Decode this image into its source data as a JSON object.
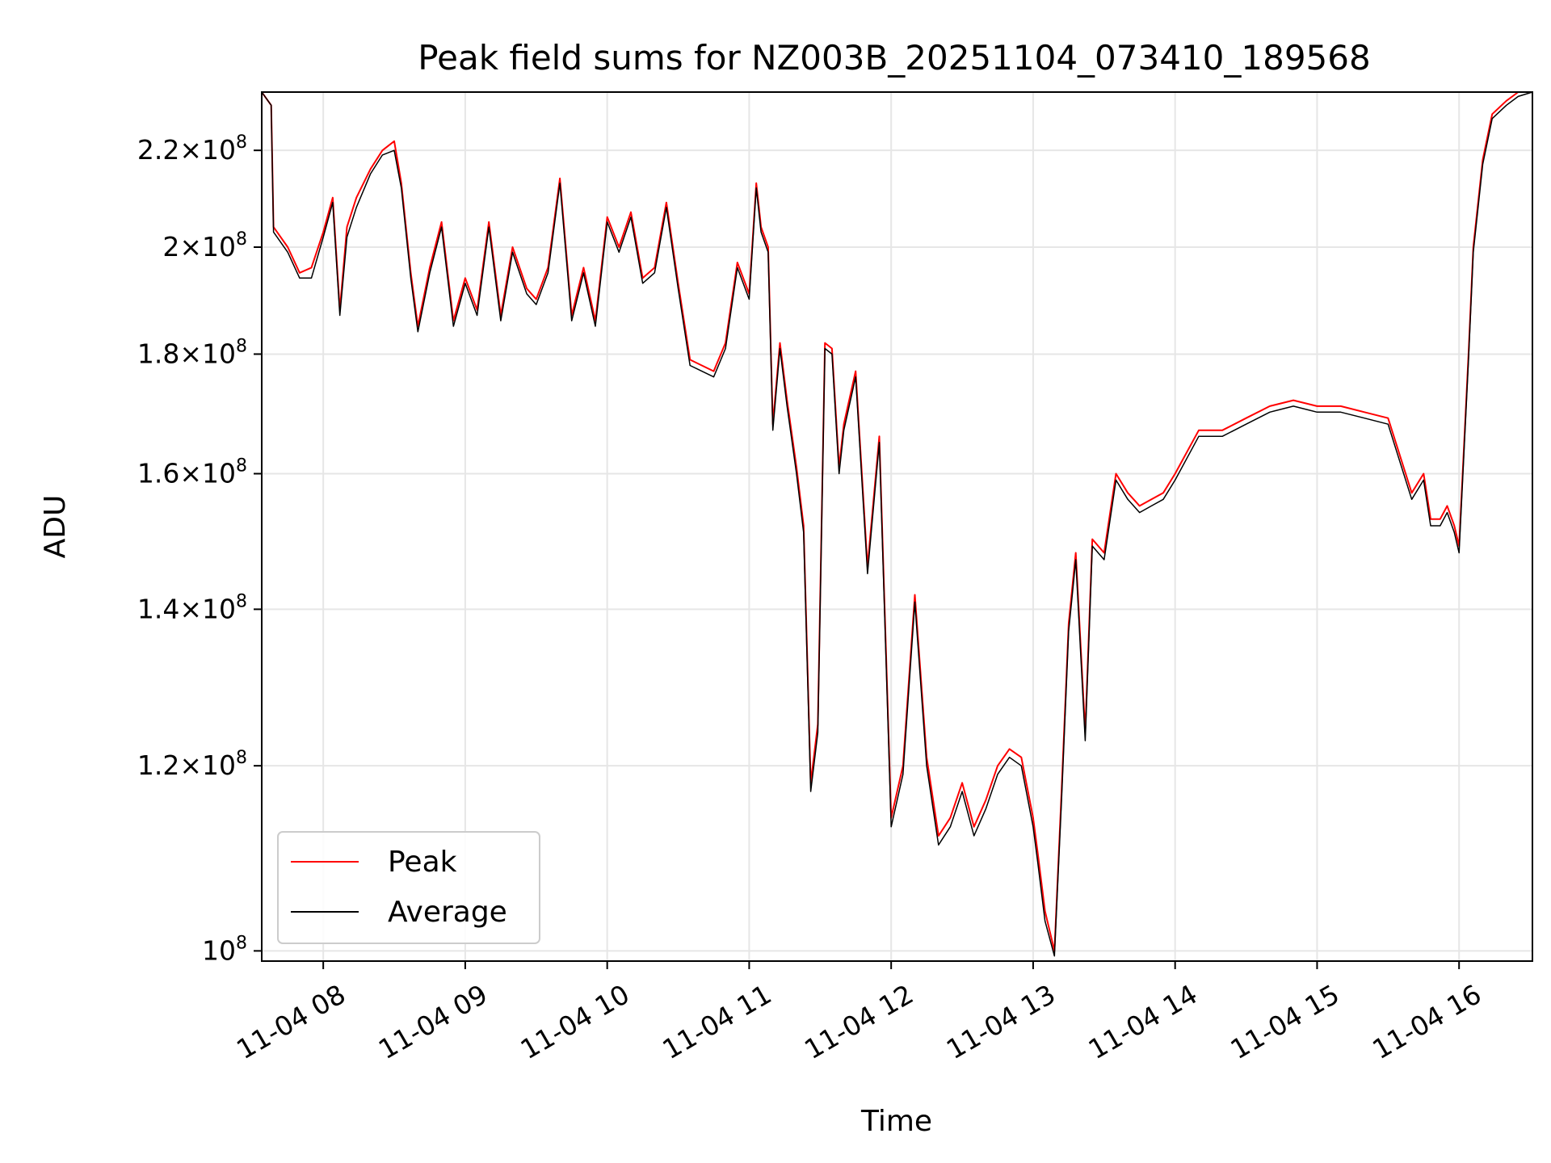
{
  "chart_data": {
    "type": "line",
    "title": "Peak field sums for NZ003B_20251104_073410_189568",
    "xlabel": "Time",
    "ylabel": "ADU",
    "yscale": "log",
    "xlim": [
      "11-04 07:34",
      "11-04 16:31"
    ],
    "ylim": [
      99000000,
      233000000
    ],
    "grid": true,
    "legend_position": "lower-left",
    "x_ticks": [
      "11-04 08",
      "11-04 09",
      "11-04 10",
      "11-04 11",
      "11-04 12",
      "11-04 13",
      "11-04 14",
      "11-04 15",
      "11-04 16"
    ],
    "y_ticks": [
      {
        "value": 100000000,
        "mantissa": "",
        "exp": "8"
      },
      {
        "value": 120000000,
        "mantissa": "1.2",
        "exp": "8"
      },
      {
        "value": 140000000,
        "mantissa": "1.4",
        "exp": "8"
      },
      {
        "value": 160000000,
        "mantissa": "1.6",
        "exp": "8"
      },
      {
        "value": 180000000,
        "mantissa": "1.8",
        "exp": "8"
      },
      {
        "value": 200000000,
        "mantissa": "2",
        "exp": "8"
      },
      {
        "value": 220000000,
        "mantissa": "2.2",
        "exp": "8"
      }
    ],
    "series": [
      {
        "name": "Peak",
        "color": "#ff0000",
        "x": [
          "11-04 07:34",
          "11-04 07:38",
          "11-04 07:39",
          "11-04 07:45",
          "11-04 07:50",
          "11-04 07:55",
          "11-04 08:00",
          "11-04 08:04",
          "11-04 08:07",
          "11-04 08:10",
          "11-04 08:14",
          "11-04 08:20",
          "11-04 08:25",
          "11-04 08:30",
          "11-04 08:33",
          "11-04 08:37",
          "11-04 08:40",
          "11-04 08:45",
          "11-04 08:50",
          "11-04 08:55",
          "11-04 09:00",
          "11-04 09:05",
          "11-04 09:10",
          "11-04 09:15",
          "11-04 09:20",
          "11-04 09:26",
          "11-04 09:30",
          "11-04 09:35",
          "11-04 09:40",
          "11-04 09:45",
          "11-04 09:50",
          "11-04 09:55",
          "11-04 10:00",
          "11-04 10:05",
          "11-04 10:10",
          "11-04 10:15",
          "11-04 10:20",
          "11-04 10:25",
          "11-04 10:30",
          "11-04 10:35",
          "11-04 10:40",
          "11-04 10:45",
          "11-04 10:50",
          "11-04 10:55",
          "11-04 11:00",
          "11-04 11:03",
          "11-04 11:05",
          "11-04 11:08",
          "11-04 11:10",
          "11-04 11:13",
          "11-04 11:16",
          "11-04 11:20",
          "11-04 11:23",
          "11-04 11:26",
          "11-04 11:29",
          "11-04 11:32",
          "11-04 11:35",
          "11-04 11:38",
          "11-04 11:40",
          "11-04 11:45",
          "11-04 11:50",
          "11-04 11:55",
          "11-04 12:00",
          "11-04 12:05",
          "11-04 12:10",
          "11-04 12:15",
          "11-04 12:20",
          "11-04 12:25",
          "11-04 12:30",
          "11-04 12:35",
          "11-04 12:40",
          "11-04 12:45",
          "11-04 12:50",
          "11-04 12:55",
          "11-04 13:00",
          "11-04 13:02",
          "11-04 13:05",
          "11-04 13:09",
          "11-04 13:12",
          "11-04 13:15",
          "11-04 13:18",
          "11-04 13:22",
          "11-04 13:25",
          "11-04 13:30",
          "11-04 13:35",
          "11-04 13:40",
          "11-04 13:45",
          "11-04 13:50",
          "11-04 13:55",
          "11-04 14:00",
          "11-04 14:10",
          "11-04 14:20",
          "11-04 14:30",
          "11-04 14:40",
          "11-04 14:50",
          "11-04 15:00",
          "11-04 15:10",
          "11-04 15:20",
          "11-04 15:30",
          "11-04 15:40",
          "11-04 15:45",
          "11-04 15:48",
          "11-04 15:52",
          "11-04 15:55",
          "11-04 15:58",
          "11-04 16:00",
          "11-04 16:04",
          "11-04 16:06",
          "11-04 16:10",
          "11-04 16:14",
          "11-04 16:20",
          "11-04 16:25",
          "11-04 16:31"
        ],
        "values": [
          233000000,
          230000000,
          204000000,
          200000000,
          195000000,
          196000000,
          203000000,
          210000000,
          188000000,
          204000000,
          210000000,
          216000000,
          220000000,
          222000000,
          213000000,
          195000000,
          185000000,
          196000000,
          205000000,
          186000000,
          194000000,
          188000000,
          205000000,
          187000000,
          200000000,
          192000000,
          190000000,
          196000000,
          214000000,
          187000000,
          196000000,
          186000000,
          206000000,
          200000000,
          207000000,
          194000000,
          196000000,
          209000000,
          193000000,
          179000000,
          178000000,
          177000000,
          182000000,
          197000000,
          191000000,
          213000000,
          204000000,
          200000000,
          168000000,
          182000000,
          172000000,
          161000000,
          152000000,
          118000000,
          125000000,
          182000000,
          181000000,
          161000000,
          168000000,
          177000000,
          146000000,
          166000000,
          114000000,
          120000000,
          142000000,
          121000000,
          112000000,
          114000000,
          118000000,
          113000000,
          116000000,
          120000000,
          122000000,
          121000000,
          114000000,
          110000000,
          104000000,
          100000000,
          117000000,
          138000000,
          148000000,
          124000000,
          150000000,
          148000000,
          160000000,
          157000000,
          155000000,
          156000000,
          157000000,
          160000000,
          167000000,
          167000000,
          169000000,
          171000000,
          172000000,
          171000000,
          171000000,
          170000000,
          169000000,
          157000000,
          160000000,
          153000000,
          153000000,
          155000000,
          152000000,
          149000000,
          180000000,
          200000000,
          218000000,
          228000000,
          231000000,
          233000000,
          233000000
        ]
      },
      {
        "name": "Average",
        "color": "#000000",
        "x": [
          "11-04 07:34",
          "11-04 07:38",
          "11-04 07:39",
          "11-04 07:45",
          "11-04 07:50",
          "11-04 07:55",
          "11-04 08:00",
          "11-04 08:04",
          "11-04 08:07",
          "11-04 08:10",
          "11-04 08:14",
          "11-04 08:20",
          "11-04 08:25",
          "11-04 08:30",
          "11-04 08:33",
          "11-04 08:37",
          "11-04 08:40",
          "11-04 08:45",
          "11-04 08:50",
          "11-04 08:55",
          "11-04 09:00",
          "11-04 09:05",
          "11-04 09:10",
          "11-04 09:15",
          "11-04 09:20",
          "11-04 09:26",
          "11-04 09:30",
          "11-04 09:35",
          "11-04 09:40",
          "11-04 09:45",
          "11-04 09:50",
          "11-04 09:55",
          "11-04 10:00",
          "11-04 10:05",
          "11-04 10:10",
          "11-04 10:15",
          "11-04 10:20",
          "11-04 10:25",
          "11-04 10:30",
          "11-04 10:35",
          "11-04 10:40",
          "11-04 10:45",
          "11-04 10:50",
          "11-04 10:55",
          "11-04 11:00",
          "11-04 11:03",
          "11-04 11:05",
          "11-04 11:08",
          "11-04 11:10",
          "11-04 11:13",
          "11-04 11:16",
          "11-04 11:20",
          "11-04 11:23",
          "11-04 11:26",
          "11-04 11:29",
          "11-04 11:32",
          "11-04 11:35",
          "11-04 11:38",
          "11-04 11:40",
          "11-04 11:45",
          "11-04 11:50",
          "11-04 11:55",
          "11-04 12:00",
          "11-04 12:05",
          "11-04 12:10",
          "11-04 12:15",
          "11-04 12:20",
          "11-04 12:25",
          "11-04 12:30",
          "11-04 12:35",
          "11-04 12:40",
          "11-04 12:45",
          "11-04 12:50",
          "11-04 12:55",
          "11-04 13:00",
          "11-04 13:02",
          "11-04 13:05",
          "11-04 13:09",
          "11-04 13:12",
          "11-04 13:15",
          "11-04 13:18",
          "11-04 13:22",
          "11-04 13:25",
          "11-04 13:30",
          "11-04 13:35",
          "11-04 13:40",
          "11-04 13:45",
          "11-04 13:50",
          "11-04 13:55",
          "11-04 14:00",
          "11-04 14:10",
          "11-04 14:20",
          "11-04 14:30",
          "11-04 14:40",
          "11-04 14:50",
          "11-04 15:00",
          "11-04 15:10",
          "11-04 15:20",
          "11-04 15:30",
          "11-04 15:40",
          "11-04 15:45",
          "11-04 15:48",
          "11-04 15:52",
          "11-04 15:55",
          "11-04 15:58",
          "11-04 16:00",
          "11-04 16:04",
          "11-04 16:06",
          "11-04 16:10",
          "11-04 16:14",
          "11-04 16:20",
          "11-04 16:25",
          "11-04 16:31"
        ],
        "values": [
          233000000,
          230000000,
          203000000,
          199000000,
          194000000,
          194000000,
          202000000,
          209000000,
          187000000,
          202000000,
          208000000,
          215000000,
          219000000,
          220000000,
          212000000,
          194000000,
          184000000,
          195000000,
          204000000,
          185000000,
          193000000,
          187000000,
          204000000,
          186000000,
          199000000,
          191000000,
          189000000,
          195000000,
          213000000,
          186000000,
          195000000,
          185000000,
          205000000,
          199000000,
          206000000,
          193000000,
          195000000,
          208000000,
          192000000,
          178000000,
          177000000,
          176000000,
          181000000,
          196000000,
          190000000,
          212000000,
          203000000,
          199000000,
          167000000,
          181000000,
          171000000,
          160000000,
          151000000,
          117000000,
          124000000,
          181000000,
          180000000,
          160000000,
          167000000,
          176000000,
          145000000,
          165000000,
          113000000,
          119000000,
          141000000,
          120000000,
          111000000,
          113000000,
          117000000,
          112000000,
          115000000,
          119000000,
          121000000,
          120000000,
          113000000,
          109000000,
          103000000,
          99500000,
          116000000,
          137000000,
          147000000,
          123000000,
          149000000,
          147000000,
          159000000,
          156000000,
          154000000,
          155000000,
          156000000,
          159000000,
          166000000,
          166000000,
          168000000,
          170000000,
          171000000,
          170000000,
          170000000,
          169000000,
          168000000,
          156000000,
          159000000,
          152000000,
          152000000,
          154000000,
          151000000,
          148000000,
          179000000,
          199000000,
          217000000,
          227000000,
          230000000,
          232000000,
          233000000
        ]
      }
    ]
  }
}
